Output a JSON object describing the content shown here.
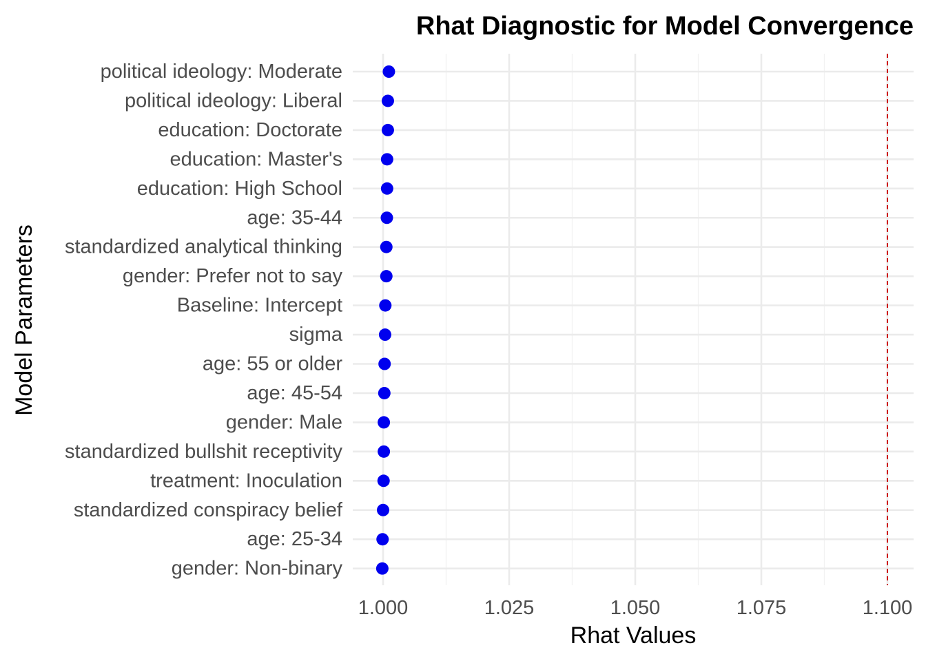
{
  "chart_data": {
    "type": "scatter",
    "title": "Rhat Diagnostic for Model Convergence",
    "xlabel": "Rhat Values",
    "ylabel": "Model Parameters",
    "xlim": [
      0.9955,
      1.11
    ],
    "xticks": [
      1.0,
      1.025,
      1.05,
      1.075,
      1.1
    ],
    "xtick_labels": [
      "1.000",
      "1.025",
      "1.050",
      "1.075",
      "1.100"
    ],
    "reference_line": {
      "x": 1.1,
      "color": "#cc0000",
      "style": "dashed"
    },
    "point_color": "#0000ee",
    "grid": true,
    "points": [
      {
        "label": "political ideology: Moderate",
        "value": 1.00115
      },
      {
        "label": "political ideology: Liberal",
        "value": 1.00095
      },
      {
        "label": "education: Doctorate",
        "value": 1.00095
      },
      {
        "label": "education: Master's",
        "value": 1.0008
      },
      {
        "label": "education: High School",
        "value": 1.0008
      },
      {
        "label": "age: 35-44",
        "value": 1.00075
      },
      {
        "label": "standardized analytical thinking",
        "value": 1.00065
      },
      {
        "label": "gender: Prefer not to say",
        "value": 1.00065
      },
      {
        "label": "Baseline: Intercept",
        "value": 1.00045
      },
      {
        "label": "sigma",
        "value": 1.0004
      },
      {
        "label": "age: 55 or older",
        "value": 1.0003
      },
      {
        "label": "age: 45-54",
        "value": 1.00025
      },
      {
        "label": "gender: Male",
        "value": 1.00015
      },
      {
        "label": "standardized bullshit receptivity",
        "value": 1.00015
      },
      {
        "label": "treatment: Inoculation",
        "value": 1.0001
      },
      {
        "label": "standardized conspiracy belief",
        "value": 1.0
      },
      {
        "label": "age: 25-34",
        "value": 0.9999
      },
      {
        "label": "gender: Non-binary",
        "value": 0.99985
      }
    ]
  }
}
